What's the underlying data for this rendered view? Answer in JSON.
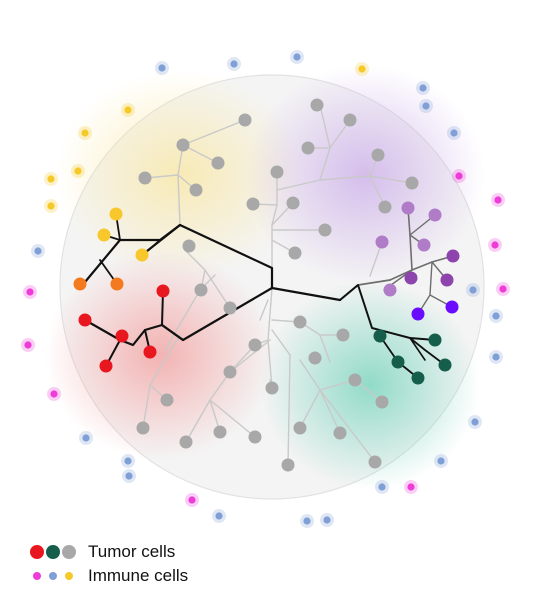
{
  "colors": {
    "tumor_red": "#e8161f",
    "tumor_green": "#155e4c",
    "tumor_gray": "#a8a8a8",
    "tumor_orange": "#f47a20",
    "tumor_yellow": "#f7c72c",
    "tumor_purple_light": "#b07cc8",
    "tumor_purple_mid": "#8e44ad",
    "tumor_violet": "#6a0dff",
    "immune_magenta": "#ef3bd7",
    "immune_blue": "#7f9fd6",
    "immune_yellow": "#f5c928"
  },
  "legend": {
    "tumor_label": "Tumor cells",
    "immune_label": "Immune cells"
  }
}
